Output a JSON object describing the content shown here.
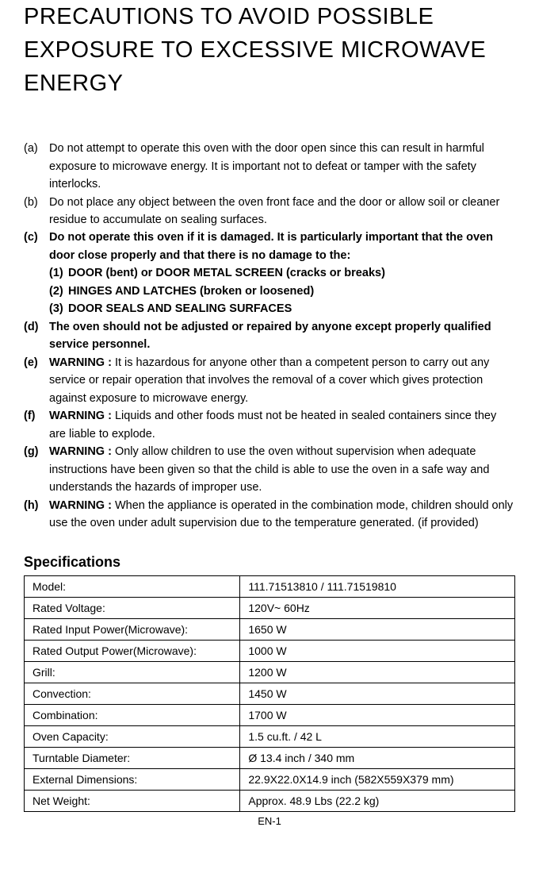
{
  "title": "PRECAUTIONS TO AVOID POSSIBLE EXPOSURE TO EXCESSIVE MICROWAVE ENERGY",
  "items": {
    "a": {
      "marker": "(a)",
      "text": "Do not attempt to operate this oven with the door open since this can result in harmful exposure to microwave energy. It is important not to defeat or tamper with the safety interlocks."
    },
    "b": {
      "marker": "(b)",
      "text": "Do not place any object between the oven front face and the door or allow soil or cleaner residue to accumulate on sealing surfaces."
    },
    "c": {
      "marker": "(c)",
      "text": "Do not operate this oven if it is damaged. It is particularly important that the oven door close properly and that there is no damage to the:",
      "sub1_marker": "(1)",
      "sub1_text": " DOOR (bent) or DOOR METAL SCREEN (cracks or breaks)",
      "sub2_marker": "(2)",
      "sub2_text": "HINGES AND LATCHES (broken or loosened)",
      "sub3_marker": "(3)",
      "sub3_text": "DOOR SEALS AND SEALING SURFACES"
    },
    "d": {
      "marker": "(d)",
      "text": "The oven should not be adjusted or repaired by anyone except properly qualified service personnel."
    },
    "e": {
      "marker": "(e)",
      "lead": "WARNING :",
      "text": " It is hazardous for anyone other than a competent person to carry out any service or repair operation that involves the removal of a cover which gives protection against exposure to microwave energy."
    },
    "f": {
      "marker": "(f)",
      "lead": "WARNING :",
      "text": " Liquids and other foods must not be heated in sealed containers since they are liable to explode."
    },
    "g": {
      "marker": "(g)",
      "lead": "WARNING :",
      "text": " Only allow children to use the oven without supervision when adequate instructions have been given so that the child is able to use the oven in a safe way and understands the hazards of improper use."
    },
    "h": {
      "marker": "(h)",
      "lead": "WARNING :",
      "text": " When the appliance is operated in the combination mode, children should only use the oven under adult supervision due to the temperature generated. (if provided)"
    }
  },
  "specsTitle": "Specifications",
  "specs": {
    "r0": {
      "label": "Model:",
      "value": "111.71513810 / 111.71519810"
    },
    "r1": {
      "label": "Rated Voltage:",
      "value": "120V~ 60Hz"
    },
    "r2": {
      "label": "Rated Input Power(Microwave):",
      "value": "1650 W"
    },
    "r3": {
      "label": "Rated Output Power(Microwave):",
      "value": "1000 W"
    },
    "r4": {
      "label": "Grill:",
      "value": "1200 W"
    },
    "r5": {
      "label": "Convection:",
      "value": "1450 W"
    },
    "r6": {
      "label": "Combination:",
      "value": "1700 W"
    },
    "r7": {
      "label": "Oven Capacity:",
      "value": "1.5 cu.ft. / 42 L"
    },
    "r8": {
      "label": "Turntable Diameter:",
      "value": "Ø 13.4 inch / 340 mm"
    },
    "r9": {
      "label": "External Dimensions:",
      "value": "22.9X22.0X14.9 inch (582X559X379 mm)"
    },
    "r10": {
      "label": "Net Weight:",
      "value": "Approx. 48.9 Lbs (22.2 kg)"
    }
  },
  "pageNumber": "EN-1"
}
